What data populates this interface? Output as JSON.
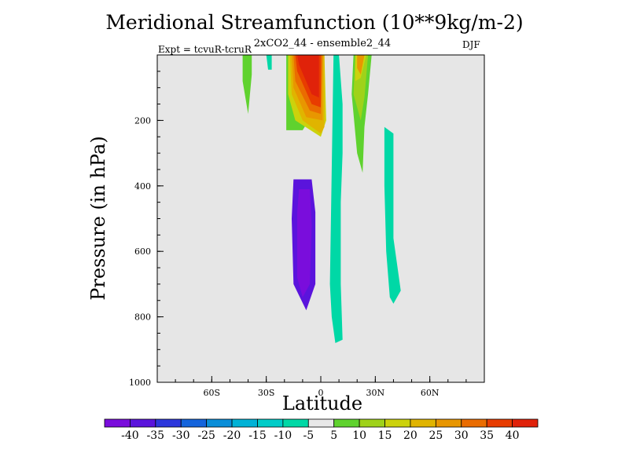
{
  "chart_data": {
    "type": "contour",
    "title": "Meridional Streamfunction (10**9kg/m-2)",
    "subtitle": "2xCO2_44 - ensemble2_44",
    "left_label": "Expt = tcvuR-tcruR",
    "right_label": "DJF",
    "xlabel": "Latitude",
    "ylabel": "Pressure (in hPa)",
    "xlim": [
      -90,
      90
    ],
    "ylim": [
      1000,
      0
    ],
    "y_inverted": true,
    "x_ticks": [
      {
        "value": -60,
        "label": "60S"
      },
      {
        "value": -30,
        "label": "30S"
      },
      {
        "value": 0,
        "label": "0"
      },
      {
        "value": 30,
        "label": "30N"
      },
      {
        "value": 60,
        "label": "60N"
      }
    ],
    "y_ticks": [
      {
        "value": 200,
        "label": "200"
      },
      {
        "value": 400,
        "label": "400"
      },
      {
        "value": 600,
        "label": "600"
      },
      {
        "value": 800,
        "label": "800"
      },
      {
        "value": 1000,
        "label": "1000"
      }
    ],
    "background_color": "#e6e6e6",
    "colorbar": {
      "levels": [
        -40,
        -35,
        -30,
        -25,
        -20,
        -15,
        -10,
        -5,
        5,
        10,
        15,
        20,
        25,
        30,
        35,
        40
      ],
      "labels": [
        "-40",
        "-35",
        "-30",
        "-25",
        "-20",
        "-15",
        "-10",
        "-5",
        "5",
        "10",
        "15",
        "20",
        "25",
        "30",
        "35",
        "40"
      ],
      "colors": [
        "#7a0ddc",
        "#5a14dc",
        "#2d37dc",
        "#1464dc",
        "#0a8ed8",
        "#00b2d6",
        "#00ccc8",
        "#00d8a6",
        "#e8e8e8",
        "#5fd22e",
        "#9fd21a",
        "#ccd20c",
        "#e0b400",
        "#e89600",
        "#ea6c00",
        "#e83c00",
        "#e0220a"
      ]
    },
    "regions": [
      {
        "color_index": 1,
        "value": -35,
        "points": [
          [
            -15,
            380
          ],
          [
            -5,
            380
          ],
          [
            -3,
            480
          ],
          [
            -3,
            700
          ],
          [
            -8,
            780
          ],
          [
            -15,
            700
          ],
          [
            -16,
            500
          ]
        ]
      },
      {
        "color_index": 0,
        "value": -40,
        "points": [
          [
            -12,
            410
          ],
          [
            -6,
            410
          ],
          [
            -5,
            520
          ],
          [
            -6,
            700
          ],
          [
            -10,
            740
          ],
          [
            -13,
            680
          ],
          [
            -13,
            480
          ]
        ]
      },
      {
        "color_index": 9,
        "value": 5,
        "points": [
          [
            -43,
            0
          ],
          [
            -38,
            0
          ],
          [
            -38,
            60
          ],
          [
            -40,
            180
          ],
          [
            -43,
            80
          ]
        ]
      },
      {
        "color_index": 9,
        "value": 5,
        "points": [
          [
            -19,
            0
          ],
          [
            -1,
            0
          ],
          [
            -1,
            150
          ],
          [
            -10,
            230
          ],
          [
            -19,
            230
          ]
        ]
      },
      {
        "color_index": 9,
        "value": 5,
        "points": [
          [
            18,
            0
          ],
          [
            28,
            0
          ],
          [
            26,
            120
          ],
          [
            24,
            220
          ],
          [
            23,
            360
          ],
          [
            20,
            300
          ],
          [
            17,
            120
          ]
        ]
      },
      {
        "color_index": 10,
        "value": 10,
        "points": [
          [
            19,
            0
          ],
          [
            26,
            0
          ],
          [
            24,
            130
          ],
          [
            22,
            200
          ],
          [
            18,
            120
          ]
        ]
      },
      {
        "color_index": 11,
        "value": 15,
        "points": [
          [
            -18,
            0
          ],
          [
            2,
            0
          ],
          [
            3,
            200
          ],
          [
            0,
            250
          ],
          [
            -14,
            200
          ],
          [
            -18,
            120
          ]
        ]
      },
      {
        "color_index": 11,
        "value": 15,
        "points": [
          [
            19,
            0
          ],
          [
            25,
            0
          ],
          [
            22,
            70
          ],
          [
            19,
            80
          ]
        ]
      },
      {
        "color_index": 12,
        "value": 20,
        "points": [
          [
            -17,
            0
          ],
          [
            2,
            0
          ],
          [
            2,
            220
          ],
          [
            0,
            240
          ],
          [
            -10,
            200
          ],
          [
            -16,
            120
          ]
        ]
      },
      {
        "color_index": 13,
        "value": 25,
        "points": [
          [
            -16,
            0
          ],
          [
            1,
            0
          ],
          [
            1,
            200
          ],
          [
            -8,
            190
          ],
          [
            -15,
            100
          ]
        ]
      },
      {
        "color_index": 13,
        "value": 25,
        "points": [
          [
            20,
            0
          ],
          [
            24,
            0
          ],
          [
            22,
            60
          ],
          [
            20,
            40
          ]
        ]
      },
      {
        "color_index": 14,
        "value": 30,
        "points": [
          [
            -15,
            0
          ],
          [
            1,
            0
          ],
          [
            0,
            180
          ],
          [
            -6,
            170
          ],
          [
            -14,
            80
          ]
        ]
      },
      {
        "color_index": 15,
        "value": 35,
        "points": [
          [
            -14,
            0
          ],
          [
            0,
            0
          ],
          [
            0,
            160
          ],
          [
            -5,
            150
          ],
          [
            -13,
            50
          ]
        ]
      },
      {
        "color_index": 16,
        "value": 40,
        "points": [
          [
            -13,
            0
          ],
          [
            -1,
            0
          ],
          [
            -1,
            130
          ],
          [
            -5,
            120
          ],
          [
            -12,
            30
          ]
        ]
      },
      {
        "color_index": 7,
        "value": -5,
        "points": [
          [
            -30,
            0
          ],
          [
            -27,
            0
          ],
          [
            -27,
            45
          ],
          [
            -29,
            45
          ]
        ]
      },
      {
        "color_index": 7,
        "value": -5,
        "points": [
          [
            35,
            220
          ],
          [
            40,
            240
          ],
          [
            40,
            560
          ],
          [
            44,
            720
          ],
          [
            40,
            760
          ],
          [
            38,
            740
          ],
          [
            36,
            600
          ],
          [
            35,
            400
          ]
        ]
      },
      {
        "color_index": 7,
        "value": -5,
        "points": [
          [
            7,
            0
          ],
          [
            10,
            0
          ],
          [
            12,
            150
          ],
          [
            12,
            300
          ],
          [
            11,
            450
          ],
          [
            11,
            700
          ],
          [
            12,
            870
          ],
          [
            8,
            880
          ],
          [
            6,
            800
          ],
          [
            5,
            700
          ]
        ]
      }
    ]
  }
}
